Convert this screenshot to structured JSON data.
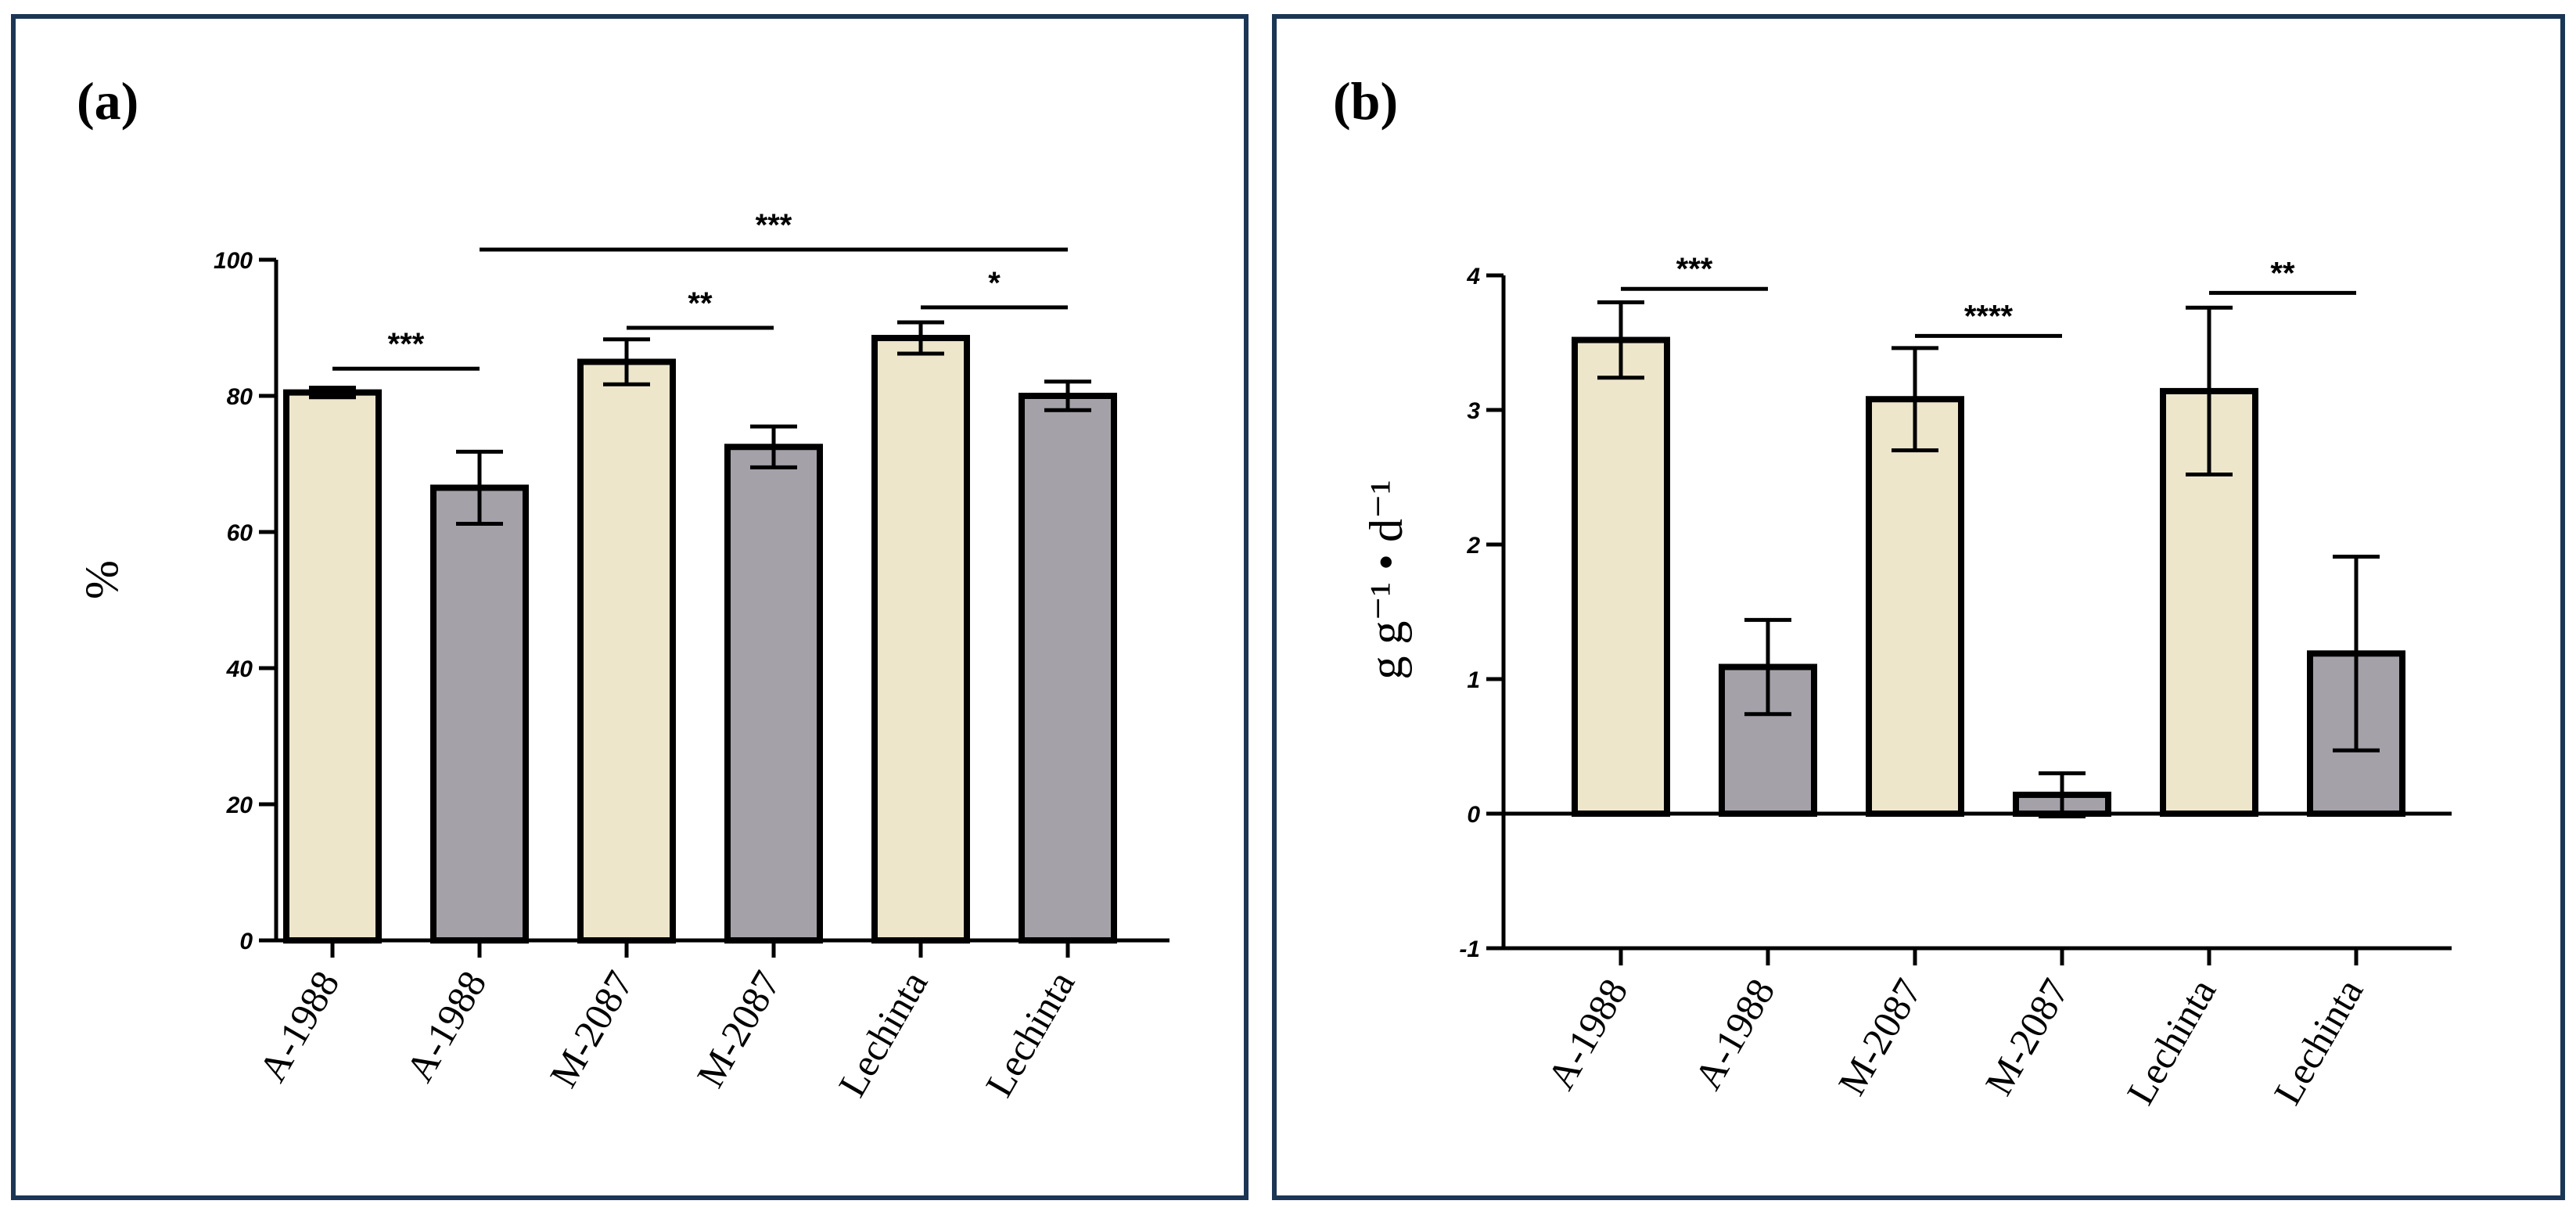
{
  "colors": {
    "light": "#ede6cb",
    "dark": "#a4a1a8",
    "frame": "#1b3655"
  },
  "chart_data": [
    {
      "panel_label": "(a)",
      "type": "bar",
      "ylabel": "%",
      "ylim": [
        0,
        100
      ],
      "yticks": [
        "0",
        "20",
        "40",
        "60",
        "80",
        "100"
      ],
      "categories": [
        "A-1988",
        "A-1988",
        "M-2087",
        "M-2087",
        "Lechinta",
        "Lechinta"
      ],
      "values": [
        80.5,
        66.5,
        85,
        72.5,
        88.5,
        80
      ],
      "errors": [
        0.7,
        5.3,
        3.3,
        3.0,
        2.3,
        2.1
      ],
      "bar_colors": [
        "light",
        "dark",
        "light",
        "dark",
        "light",
        "dark"
      ],
      "significance": [
        {
          "from": 0,
          "to": 1,
          "label": "***",
          "level": 84
        },
        {
          "from": 2,
          "to": 3,
          "label": "**",
          "level": 90
        },
        {
          "from": 4,
          "to": 5,
          "label": "*",
          "level": 93
        },
        {
          "from": 1,
          "to": 5,
          "label": "***",
          "level": 101.5
        }
      ]
    },
    {
      "panel_label": "(b)",
      "type": "bar",
      "ylabel": "g g⁻¹ • d⁻¹",
      "ylim": [
        -1,
        4
      ],
      "yticks": [
        "-1",
        "0",
        "1",
        "2",
        "3",
        "4"
      ],
      "categories": [
        "A-1988",
        "A-1988",
        "M-2087",
        "M-2087",
        "Lechinta",
        "Lechinta"
      ],
      "values": [
        3.52,
        1.09,
        3.08,
        0.14,
        3.14,
        1.19
      ],
      "errors": [
        0.28,
        0.35,
        0.38,
        0.16,
        0.62,
        0.72
      ],
      "bar_colors": [
        "light",
        "dark",
        "light",
        "dark",
        "light",
        "dark"
      ],
      "significance": [
        {
          "from": 0,
          "to": 1,
          "label": "***",
          "level": 3.9
        },
        {
          "from": 2,
          "to": 3,
          "label": "****",
          "level": 3.55
        },
        {
          "from": 4,
          "to": 5,
          "label": "**",
          "level": 3.87
        }
      ]
    }
  ]
}
